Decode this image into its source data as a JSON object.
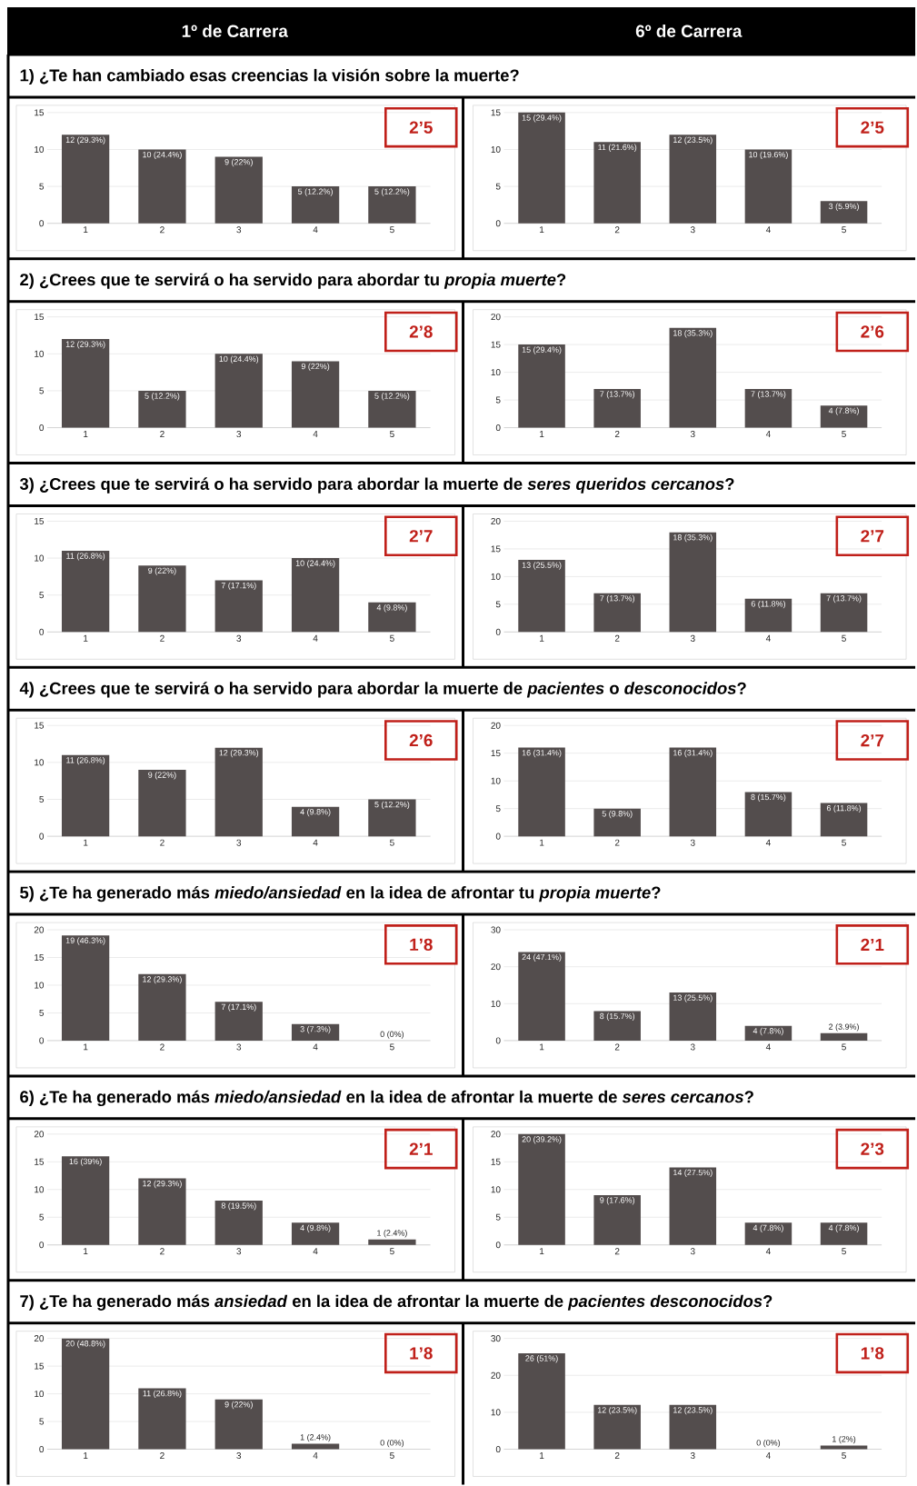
{
  "chart_data": [
    {
      "type": "bar",
      "subtitle": "1º de Carrera",
      "title": "1) ¿Te han cambiado esas creencias la visión sobre la muerte?",
      "categories": [
        "1",
        "2",
        "3",
        "4",
        "5"
      ],
      "values": [
        12,
        10,
        9,
        5,
        5
      ],
      "value_labels": [
        "12 (29.3%)",
        "10 (24.4%)",
        "9 (22%)",
        "5 (12.2%)",
        "5 (12.2%)"
      ],
      "color": "#534d4d",
      "ylim": [
        0,
        15
      ],
      "yticks": [
        0,
        5,
        10,
        15
      ],
      "grid": "y",
      "annotations": [
        "2’5"
      ]
    },
    {
      "type": "bar",
      "subtitle": "6º de Carrera",
      "categories": [
        "1",
        "2",
        "3",
        "4",
        "5"
      ],
      "values": [
        15,
        11,
        12,
        10,
        3
      ],
      "value_labels": [
        "15 (29.4%)",
        "11 (21.6%)",
        "12 (23.5%)",
        "10 (19.6%)",
        "3 (5.9%)"
      ],
      "color": "#534d4d",
      "ylim": [
        0,
        15
      ],
      "yticks": [
        0,
        5,
        10,
        15
      ],
      "grid": "y",
      "annotations": [
        "2’5"
      ]
    },
    {
      "type": "bar",
      "title": "2) ¿Crees que te servirá o ha servido para abordar tu *propia muerte*?",
      "categories": [
        "1",
        "2",
        "3",
        "4",
        "5"
      ],
      "values": [
        12,
        5,
        10,
        9,
        5
      ],
      "value_labels": [
        "12 (29.3%)",
        "5 (12.2%)",
        "10 (24.4%)",
        "9 (22%)",
        "5 (12.2%)"
      ],
      "color": "#534d4d",
      "ylim": [
        0,
        15
      ],
      "yticks": [
        0,
        5,
        10,
        15
      ],
      "grid": "y",
      "annotations": [
        "2’8"
      ]
    },
    {
      "type": "bar",
      "categories": [
        "1",
        "2",
        "3",
        "4",
        "5"
      ],
      "values": [
        15,
        7,
        18,
        7,
        4
      ],
      "value_labels": [
        "15 (29.4%)",
        "7 (13.7%)",
        "18 (35.3%)",
        "7 (13.7%)",
        "4 (7.8%)"
      ],
      "color": "#534d4d",
      "ylim": [
        0,
        20
      ],
      "yticks": [
        0,
        5,
        10,
        15,
        20
      ],
      "grid": "y",
      "annotations": [
        "2’6"
      ]
    },
    {
      "type": "bar",
      "title": "3) ¿Crees que te servirá o ha servido para abordar la muerte de *seres queridos cercanos*?",
      "categories": [
        "1",
        "2",
        "3",
        "4",
        "5"
      ],
      "values": [
        11,
        9,
        7,
        10,
        4
      ],
      "value_labels": [
        "11 (26.8%)",
        "9 (22%)",
        "7 (17.1%)",
        "10 (24.4%)",
        "4 (9.8%)"
      ],
      "color": "#534d4d",
      "ylim": [
        0,
        15
      ],
      "yticks": [
        0,
        5,
        10,
        15
      ],
      "grid": "y",
      "annotations": [
        "2’7"
      ]
    },
    {
      "type": "bar",
      "categories": [
        "1",
        "2",
        "3",
        "4",
        "5"
      ],
      "values": [
        13,
        7,
        18,
        6,
        7
      ],
      "value_labels": [
        "13 (25.5%)",
        "7 (13.7%)",
        "18 (35.3%)",
        "6 (11.8%)",
        "7 (13.7%)"
      ],
      "color": "#534d4d",
      "ylim": [
        0,
        20
      ],
      "yticks": [
        0,
        5,
        10,
        15,
        20
      ],
      "grid": "y",
      "annotations": [
        "2’7"
      ]
    },
    {
      "type": "bar",
      "title": "4) ¿Crees que te servirá o ha servido para abordar la muerte de *pacientes* o *desconocidos*?",
      "categories": [
        "1",
        "2",
        "3",
        "4",
        "5"
      ],
      "values": [
        11,
        9,
        12,
        4,
        5
      ],
      "value_labels": [
        "11 (26.8%)",
        "9 (22%)",
        "12 (29.3%)",
        "4 (9.8%)",
        "5 (12.2%)"
      ],
      "color": "#534d4d",
      "ylim": [
        0,
        15
      ],
      "yticks": [
        0,
        5,
        10,
        15
      ],
      "grid": "y",
      "annotations": [
        "2’6"
      ]
    },
    {
      "type": "bar",
      "categories": [
        "1",
        "2",
        "3",
        "4",
        "5"
      ],
      "values": [
        16,
        5,
        16,
        8,
        6
      ],
      "value_labels": [
        "16 (31.4%)",
        "5 (9.8%)",
        "16 (31.4%)",
        "8 (15.7%)",
        "6 (11.8%)"
      ],
      "color": "#534d4d",
      "ylim": [
        0,
        20
      ],
      "yticks": [
        0,
        5,
        10,
        15,
        20
      ],
      "grid": "y",
      "annotations": [
        "2’7"
      ]
    },
    {
      "type": "bar",
      "title": "5) ¿Te ha generado más *miedo/ansiedad* en la idea de afrontar tu *propia muerte*?",
      "categories": [
        "1",
        "2",
        "3",
        "4",
        "5"
      ],
      "values": [
        19,
        12,
        7,
        3,
        0
      ],
      "value_labels": [
        "19 (46.3%)",
        "12 (29.3%)",
        "7 (17.1%)",
        "3 (7.3%)",
        "0 (0%)"
      ],
      "color": "#534d4d",
      "ylim": [
        0,
        20
      ],
      "yticks": [
        0,
        5,
        10,
        15,
        20
      ],
      "grid": "y",
      "annotations": [
        "1’8"
      ]
    },
    {
      "type": "bar",
      "categories": [
        "1",
        "2",
        "3",
        "4",
        "5"
      ],
      "values": [
        24,
        8,
        13,
        4,
        2
      ],
      "value_labels": [
        "24 (47.1%)",
        "8 (15.7%)",
        "13 (25.5%)",
        "4 (7.8%)",
        "2 (3.9%)"
      ],
      "color": "#534d4d",
      "ylim": [
        0,
        30
      ],
      "yticks": [
        0,
        10,
        20,
        30
      ],
      "grid": "y",
      "annotations": [
        "2’1"
      ]
    },
    {
      "type": "bar",
      "title": "6) ¿Te ha generado más *miedo/ansiedad* en la idea de afrontar la muerte de *seres cercanos*?",
      "categories": [
        "1",
        "2",
        "3",
        "4",
        "5"
      ],
      "values": [
        16,
        12,
        8,
        4,
        1
      ],
      "value_labels": [
        "16 (39%)",
        "12 (29.3%)",
        "8 (19.5%)",
        "4 (9.8%)",
        "1 (2.4%)"
      ],
      "color": "#534d4d",
      "ylim": [
        0,
        20
      ],
      "yticks": [
        0,
        5,
        10,
        15,
        20
      ],
      "grid": "y",
      "annotations": [
        "2’1"
      ]
    },
    {
      "type": "bar",
      "categories": [
        "1",
        "2",
        "3",
        "4",
        "5"
      ],
      "values": [
        20,
        9,
        14,
        4,
        4
      ],
      "value_labels": [
        "20 (39.2%)",
        "9 (17.6%)",
        "14 (27.5%)",
        "4 (7.8%)",
        "4 (7.8%)"
      ],
      "color": "#534d4d",
      "ylim": [
        0,
        20
      ],
      "yticks": [
        0,
        5,
        10,
        15,
        20
      ],
      "grid": "y",
      "annotations": [
        "2’3"
      ]
    },
    {
      "type": "bar",
      "title": "7) ¿Te ha generado más *ansiedad* en la idea de afrontar la muerte de *pacientes desconocidos*?",
      "categories": [
        "1",
        "2",
        "3",
        "4",
        "5"
      ],
      "values": [
        20,
        11,
        9,
        1,
        0
      ],
      "value_labels": [
        "20 (48.8%)",
        "11 (26.8%)",
        "9 (22%)",
        "1 (2.4%)",
        "0 (0%)"
      ],
      "color": "#534d4d",
      "ylim": [
        0,
        20
      ],
      "yticks": [
        0,
        5,
        10,
        15,
        20
      ],
      "grid": "y",
      "annotations": [
        "1’8"
      ]
    },
    {
      "type": "bar",
      "categories": [
        "1",
        "2",
        "3",
        "4",
        "5"
      ],
      "values": [
        26,
        12,
        12,
        0,
        1
      ],
      "value_labels": [
        "26 (51%)",
        "12 (23.5%)",
        "12 (23.5%)",
        "0 (0%)",
        "1 (2%)"
      ],
      "color": "#534d4d",
      "ylim": [
        0,
        30
      ],
      "yticks": [
        0,
        10,
        20,
        30
      ],
      "grid": "y",
      "annotations": [
        "1’8"
      ]
    }
  ]
}
